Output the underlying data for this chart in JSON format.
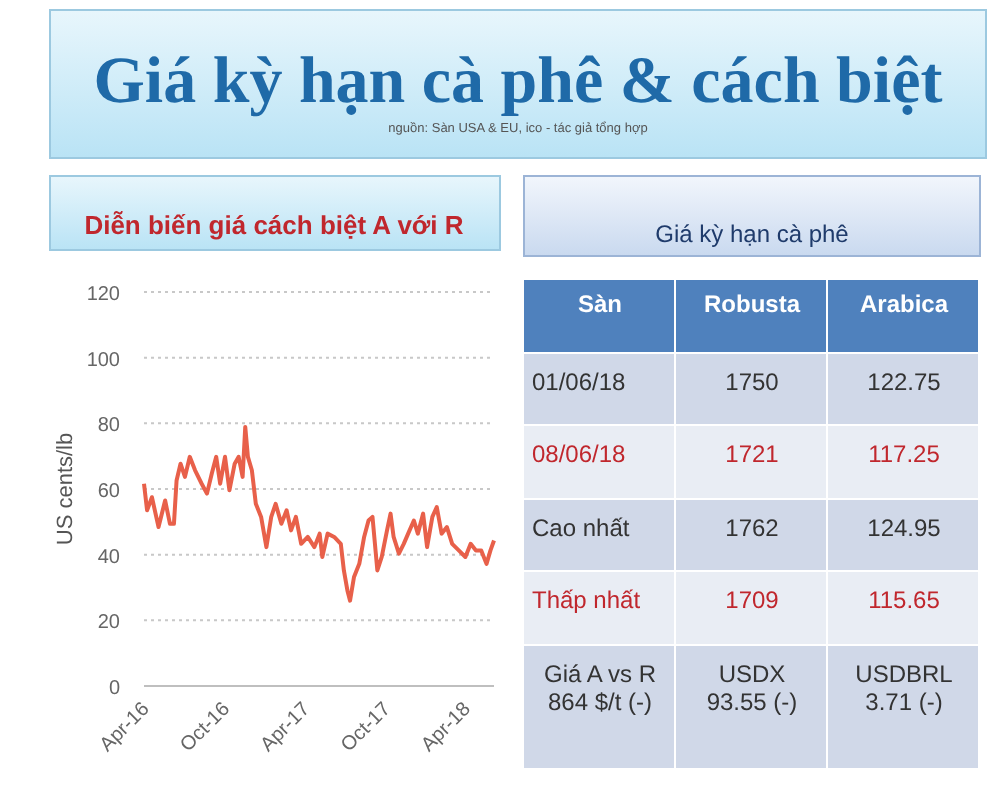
{
  "chart_data": [
    {
      "type": "other",
      "title": "Giá kỳ hạn cà phê & cách biệt",
      "annotations": [
        "nguồn: Sàn USA & EU, ico - tác giả tổng hợp"
      ]
    },
    {
      "type": "line",
      "title": "Diễn biến giá cách biệt A với R",
      "ylabel": "US cents/lb",
      "xlim": [
        "2016-04-01",
        "2018-06-05"
      ],
      "ylim": [
        0,
        120
      ],
      "yticks": [
        0,
        20,
        40,
        60,
        80,
        100,
        120
      ],
      "xticks": [
        {
          "value": "2016-04-01",
          "label": "Apr-16"
        },
        {
          "value": "2016-10-01",
          "label": "Oct-16"
        },
        {
          "value": "2017-04-01",
          "label": "Apr-17"
        },
        {
          "value": "2017-10-01",
          "label": "Oct-17"
        },
        {
          "value": "2018-04-01",
          "label": "Apr-18"
        }
      ],
      "grid": "y",
      "marker": "none",
      "line_style": "solid",
      "series": [
        {
          "color": "#e8604a",
          "x": [
            "2016-04-01",
            "2016-04-08",
            "2016-04-19",
            "2016-05-04",
            "2016-05-19",
            "2016-05-30",
            "2016-06-08",
            "2016-06-14",
            "2016-06-23",
            "2016-07-03",
            "2016-07-14",
            "2016-07-26",
            "2016-08-10",
            "2016-08-22",
            "2016-09-02",
            "2016-09-12",
            "2016-09-21",
            "2016-10-02",
            "2016-10-12",
            "2016-10-24",
            "2016-11-02",
            "2016-11-11",
            "2016-11-17",
            "2016-11-23",
            "2016-12-02",
            "2016-12-11",
            "2016-12-23",
            "2017-01-04",
            "2017-01-15",
            "2017-01-25",
            "2017-02-07",
            "2017-02-19",
            "2017-03-01",
            "2017-03-12",
            "2017-03-24",
            "2017-04-08",
            "2017-04-23",
            "2017-05-05",
            "2017-05-11",
            "2017-05-23",
            "2017-06-07",
            "2017-06-22",
            "2017-06-29",
            "2017-07-07",
            "2017-07-13",
            "2017-07-22",
            "2017-08-03",
            "2017-08-14",
            "2017-08-24",
            "2017-09-02",
            "2017-09-13",
            "2017-09-23",
            "2017-10-05",
            "2017-10-13",
            "2017-10-20",
            "2017-11-01",
            "2017-11-12",
            "2017-11-22",
            "2017-12-05",
            "2017-12-14",
            "2017-12-26",
            "2018-01-04",
            "2018-01-16",
            "2018-01-26",
            "2018-02-06",
            "2018-02-18",
            "2018-03-02",
            "2018-03-17",
            "2018-04-01",
            "2018-04-13",
            "2018-04-25",
            "2018-05-07",
            "2018-05-19",
            "2018-05-28",
            "2018-06-05"
          ],
          "values": [
            61.6,
            53.5,
            57.5,
            48.4,
            56.5,
            49.4,
            49.4,
            62.6,
            67.7,
            63.7,
            69.8,
            65.7,
            61.6,
            58.6,
            64.7,
            69.8,
            61.6,
            69.8,
            59.6,
            67.7,
            69.8,
            63.7,
            78.9,
            69.8,
            65.7,
            55.5,
            51.5,
            42.3,
            51.5,
            55.5,
            49.4,
            53.5,
            47.4,
            51.5,
            43.3,
            45.4,
            42.3,
            46.4,
            39.3,
            46.4,
            45.4,
            43.3,
            35.2,
            29.1,
            26.0,
            33.2,
            37.2,
            45.4,
            50.4,
            51.5,
            35.2,
            39.3,
            47.4,
            52.5,
            45.4,
            40.3,
            43.3,
            46.4,
            50.4,
            46.4,
            52.5,
            42.3,
            51.5,
            54.5,
            46.4,
            48.4,
            43.3,
            41.3,
            39.3,
            43.3,
            41.3,
            41.3,
            37.2,
            41.3,
            44.3
          ]
        }
      ]
    },
    {
      "type": "other",
      "title": "Giá kỳ hạn cà phê",
      "categories": [
        "Sàn",
        "Robusta",
        "Arabica"
      ],
      "cell_labels": [
        [
          "01/06/18",
          "1750",
          "122.75"
        ],
        [
          "08/06/18",
          "1721",
          "117.25"
        ],
        [
          "Cao nhất",
          "1762",
          "124.95"
        ],
        [
          "Thấp nhất",
          "1709",
          "115.65"
        ],
        [
          "Giá A vs R\n864 $/t (-)",
          "USDX\n93.55 (-)",
          "USDBRL\n3.71 (-)"
        ]
      ]
    }
  ]
}
